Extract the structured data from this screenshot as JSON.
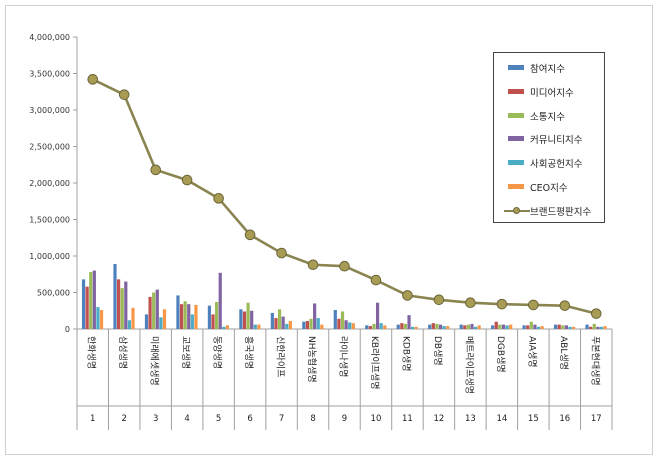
{
  "chart_data": {
    "type": "bar+line",
    "categories": [
      "한화생명",
      "삼성생명",
      "미래에셋생명",
      "교보생명",
      "동양생명",
      "흥국생명",
      "신한라이프",
      "NH농협생명",
      "라이나생명",
      "KB라이프생명",
      "KDB생명",
      "DB생명",
      "메트라이프생명",
      "DGB생명",
      "AIA생명",
      "ABL생명",
      "푸본현대생명"
    ],
    "ranks": [
      "1",
      "2",
      "3",
      "4",
      "5",
      "6",
      "7",
      "8",
      "9",
      "10",
      "11",
      "12",
      "13",
      "14",
      "15",
      "16",
      "17"
    ],
    "ylim": [
      0,
      4000000
    ],
    "yticks": [
      "0",
      "500,000",
      "1,000,000",
      "1,500,000",
      "2,000,000",
      "2,500,000",
      "3,000,000",
      "3,500,000",
      "4,000,000"
    ],
    "ytick_values": [
      0,
      500000,
      1000000,
      1500000,
      2000000,
      2500000,
      3000000,
      3500000,
      4000000
    ],
    "grid": false,
    "legend_position": "right",
    "series": [
      {
        "name": "참여지수",
        "kind": "bar",
        "color": "#4f81bd",
        "values": [
          680000,
          890000,
          200000,
          460000,
          320000,
          270000,
          220000,
          100000,
          260000,
          50000,
          60000,
          60000,
          60000,
          50000,
          50000,
          60000,
          60000
        ]
      },
      {
        "name": "미디어지수",
        "kind": "bar",
        "color": "#c0504d",
        "values": [
          580000,
          680000,
          440000,
          340000,
          200000,
          240000,
          150000,
          110000,
          140000,
          40000,
          80000,
          80000,
          50000,
          100000,
          50000,
          60000,
          30000
        ]
      },
      {
        "name": "소통지수",
        "kind": "bar",
        "color": "#9bbb59",
        "values": [
          780000,
          560000,
          500000,
          380000,
          370000,
          360000,
          270000,
          140000,
          240000,
          70000,
          70000,
          70000,
          60000,
          60000,
          100000,
          50000,
          70000
        ]
      },
      {
        "name": "커뮤니티지수",
        "kind": "bar",
        "color": "#8064a2",
        "values": [
          800000,
          650000,
          540000,
          340000,
          770000,
          250000,
          170000,
          350000,
          120000,
          360000,
          190000,
          60000,
          70000,
          60000,
          60000,
          50000,
          30000
        ]
      },
      {
        "name": "사회공헌지수",
        "kind": "bar",
        "color": "#4bacc6",
        "values": [
          300000,
          120000,
          160000,
          200000,
          30000,
          60000,
          70000,
          150000,
          90000,
          80000,
          30000,
          40000,
          30000,
          50000,
          30000,
          30000,
          30000
        ]
      },
      {
        "name": "CEO지수",
        "kind": "bar",
        "color": "#f79646",
        "values": [
          260000,
          290000,
          270000,
          330000,
          50000,
          60000,
          110000,
          60000,
          80000,
          50000,
          30000,
          40000,
          50000,
          60000,
          40000,
          30000,
          40000
        ]
      },
      {
        "name": "브랜드평판지수",
        "kind": "line",
        "color": "#8a8450",
        "values": [
          3420000,
          3210000,
          2180000,
          2040000,
          1790000,
          1290000,
          1040000,
          880000,
          860000,
          670000,
          460000,
          400000,
          360000,
          340000,
          330000,
          320000,
          210000
        ]
      }
    ]
  }
}
